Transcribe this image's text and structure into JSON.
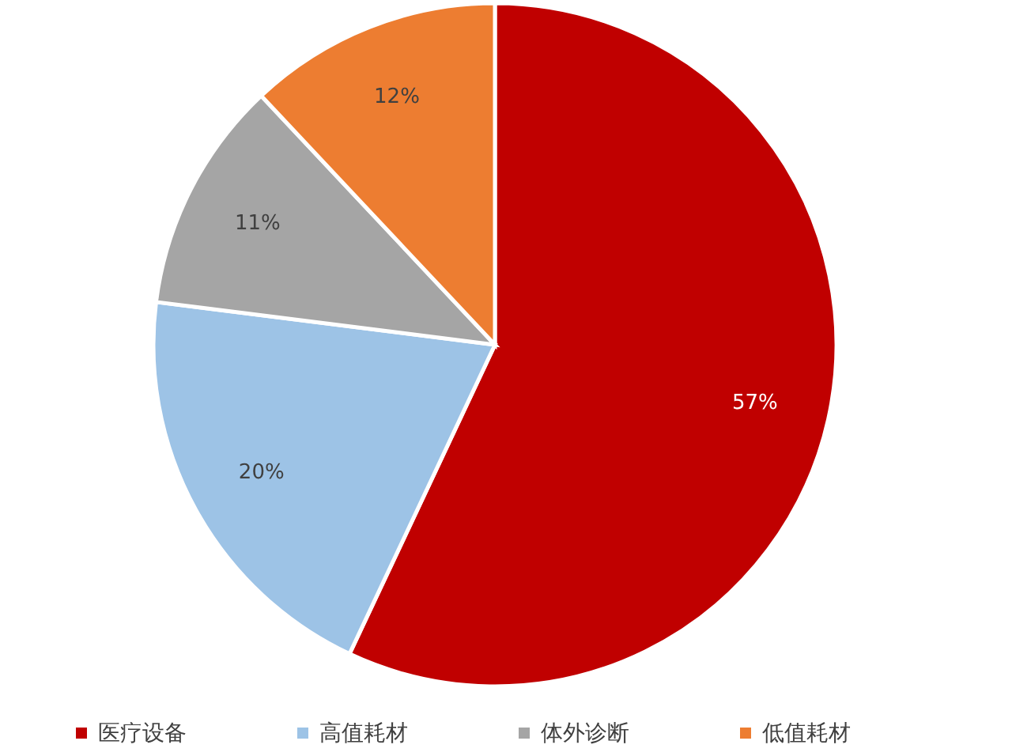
{
  "chart_data": {
    "type": "pie",
    "categories": [
      "医疗设备",
      "高值耗材",
      "体外诊断",
      "低值耗材"
    ],
    "values": [
      57,
      20,
      11,
      12
    ],
    "colors": [
      "#c00000",
      "#9dc3e6",
      "#a5a5a5",
      "#ed7d31"
    ],
    "value_labels": [
      "57%",
      "20%",
      "11%",
      "12%"
    ],
    "legend": "bottom"
  }
}
